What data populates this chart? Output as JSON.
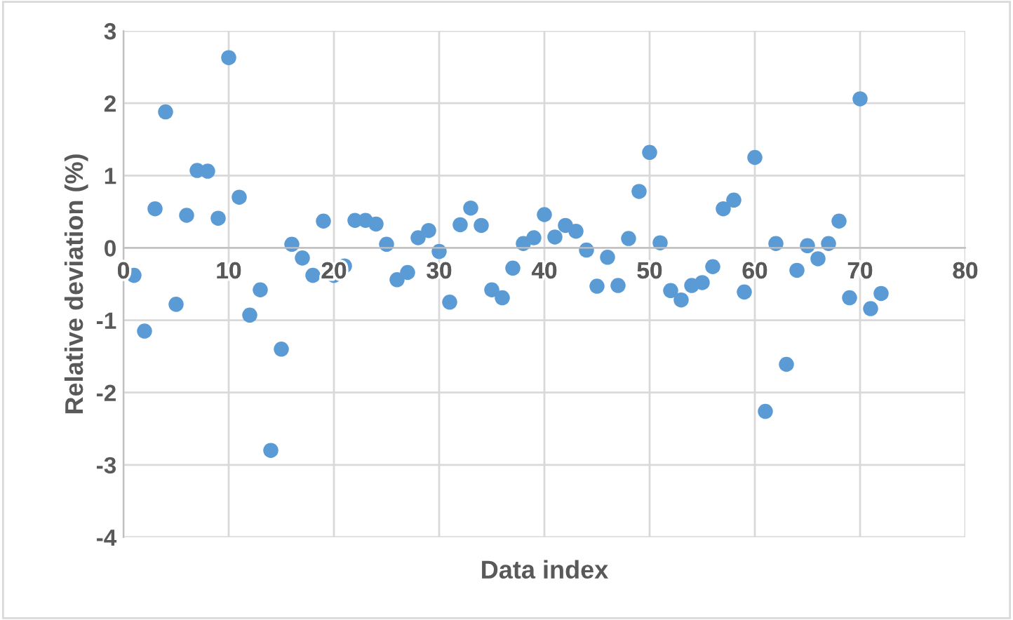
{
  "chart_data": {
    "type": "scatter",
    "xlabel": "Data index",
    "ylabel": "Relative deviation (%)",
    "x": [
      1,
      2,
      3,
      4,
      5,
      6,
      7,
      8,
      9,
      10,
      11,
      12,
      13,
      14,
      15,
      16,
      17,
      18,
      19,
      20,
      21,
      22,
      23,
      24,
      25,
      26,
      27,
      28,
      29,
      30,
      31,
      32,
      33,
      34,
      35,
      36,
      37,
      38,
      39,
      40,
      41,
      42,
      43,
      44,
      45,
      46,
      47,
      48,
      49,
      50,
      51,
      52,
      53,
      54,
      55,
      56,
      57,
      58,
      59,
      60,
      61,
      62,
      63,
      64,
      65,
      66,
      67,
      68,
      69,
      70,
      71,
      72
    ],
    "series": [
      {
        "color": "#5b9bd5",
        "values": [
          -0.38,
          -1.15,
          0.54,
          1.88,
          -0.78,
          0.45,
          1.07,
          1.06,
          0.41,
          2.63,
          0.7,
          -0.93,
          -0.58,
          -2.8,
          -1.4,
          0.05,
          -0.14,
          -0.38,
          0.37,
          -0.38,
          -0.25,
          0.38,
          0.38,
          0.33,
          0.05,
          -0.44,
          -0.34,
          0.14,
          0.24,
          -0.05,
          -0.75,
          0.32,
          0.55,
          0.31,
          -0.58,
          -0.69,
          -0.28,
          0.06,
          0.14,
          0.46,
          0.15,
          0.31,
          0.23,
          -0.03,
          -0.53,
          -0.13,
          -0.52,
          0.13,
          0.78,
          1.32,
          0.07,
          -0.59,
          -0.72,
          -0.52,
          -0.48,
          -0.26,
          0.54,
          0.66,
          -0.61,
          1.25,
          -2.26,
          0.06,
          -1.61,
          -0.31,
          0.03,
          -0.15,
          0.06,
          0.37,
          -0.69,
          2.06,
          -0.84,
          -0.63
        ]
      }
    ],
    "xlim": [
      0,
      80
    ],
    "xticks": [
      0,
      10,
      20,
      30,
      40,
      50,
      60,
      70,
      80
    ],
    "ylim": [
      -4,
      3
    ],
    "yticks": [
      -4,
      -3,
      -2,
      -1,
      0,
      1,
      2,
      3
    ],
    "grid": true,
    "marker": "circle",
    "legend": false
  }
}
